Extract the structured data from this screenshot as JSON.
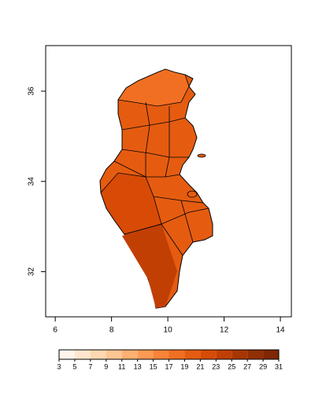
{
  "map": {
    "xlim": [
      5.66,
      14.39
    ],
    "ylim": [
      31,
      37.01
    ],
    "xticks": [
      6,
      8,
      10,
      12,
      14
    ],
    "yticks": [
      32,
      34,
      36
    ],
    "legend": {
      "breaks": [
        3,
        5,
        7,
        9,
        11,
        13,
        15,
        17,
        19,
        21,
        23,
        25,
        27,
        29,
        31
      ],
      "colors": [
        "#fff5eb",
        "#fee6ce",
        "#fdd8b0",
        "#fdc692",
        "#fdb071",
        "#fd9a53",
        "#f98439",
        "#f16f22",
        "#e55c10",
        "#d84b06",
        "#c13f03",
        "#a83603",
        "#922f04",
        "#7f2704"
      ]
    }
  }
}
